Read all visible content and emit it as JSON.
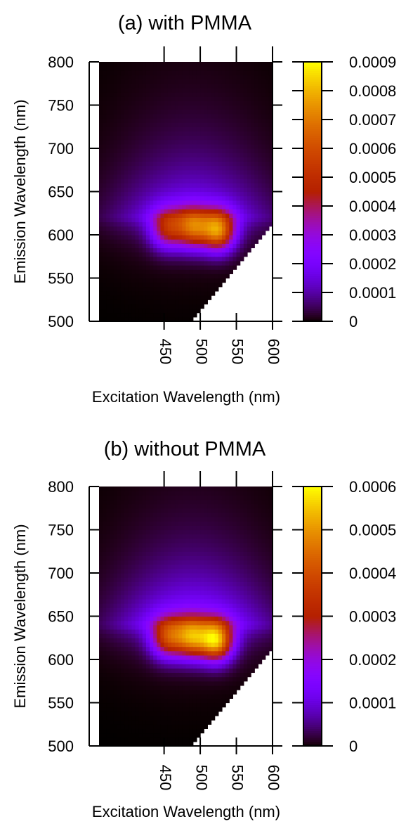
{
  "chart_data": [
    {
      "type": "heatmap",
      "title": "(a) with PMMA",
      "xlabel": "Excitation Wavelength (nm)",
      "ylabel": "Emission Wavelength (nm)",
      "xlim": [
        360,
        600
      ],
      "ylim": [
        500,
        800
      ],
      "x_ticks": [
        450,
        500,
        550,
        600
      ],
      "y_ticks": [
        500,
        550,
        650,
        700,
        750,
        800
      ],
      "y_ticks_all": [
        500,
        550,
        600,
        650,
        700,
        750,
        800
      ],
      "colorbar": {
        "min": 0,
        "max": 0.0009,
        "colormap": "gnuplot",
        "tick_values": [
          0,
          0.0001,
          0.0002,
          0.0003,
          0.0004,
          0.0005,
          0.0006,
          0.0007,
          0.0008,
          0.0009
        ],
        "tick_labels": [
          "0",
          "0.0001",
          "0.0002",
          "0.0003",
          "0.0004",
          "0.0005",
          "0.0006",
          "0.0007",
          "0.0008",
          "0.0009"
        ]
      },
      "masked_region": "emission below excitation + ~15 nm (no data)",
      "peaks": [
        {
          "excitation": 525,
          "emission": 605,
          "value": 0.00063
        },
        {
          "excitation": 490,
          "emission": 608,
          "value": 0.0005
        },
        {
          "excitation": 455,
          "emission": 607,
          "value": 0.00038
        }
      ],
      "background_band": {
        "emission": 620,
        "value": 0.00025
      }
    },
    {
      "type": "heatmap",
      "title": "(b) without PMMA",
      "xlabel": "Excitation Wavelength (nm)",
      "ylabel": "Emission Wavelength (nm)",
      "xlim": [
        360,
        600
      ],
      "ylim": [
        500,
        800
      ],
      "x_ticks": [
        450,
        500,
        550,
        600
      ],
      "y_ticks": [
        500,
        550,
        600,
        650,
        700,
        750,
        800
      ],
      "colorbar": {
        "min": 0,
        "max": 0.0006,
        "colormap": "gnuplot",
        "tick_values": [
          0,
          0.0001,
          0.0002,
          0.0003,
          0.0004,
          0.0005,
          0.0006
        ],
        "tick_labels": [
          "0",
          "0.0001",
          "0.0002",
          "0.0003",
          "0.0004",
          "0.0005",
          "0.0006"
        ]
      },
      "masked_region": "emission below excitation + ~15 nm (no data)",
      "peaks": [
        {
          "excitation": 522,
          "emission": 622,
          "value": 0.00048
        },
        {
          "excitation": 488,
          "emission": 625,
          "value": 0.00037
        },
        {
          "excitation": 455,
          "emission": 625,
          "value": 0.0003
        }
      ],
      "background_band": {
        "emission": 640,
        "value": 0.0002
      }
    }
  ]
}
